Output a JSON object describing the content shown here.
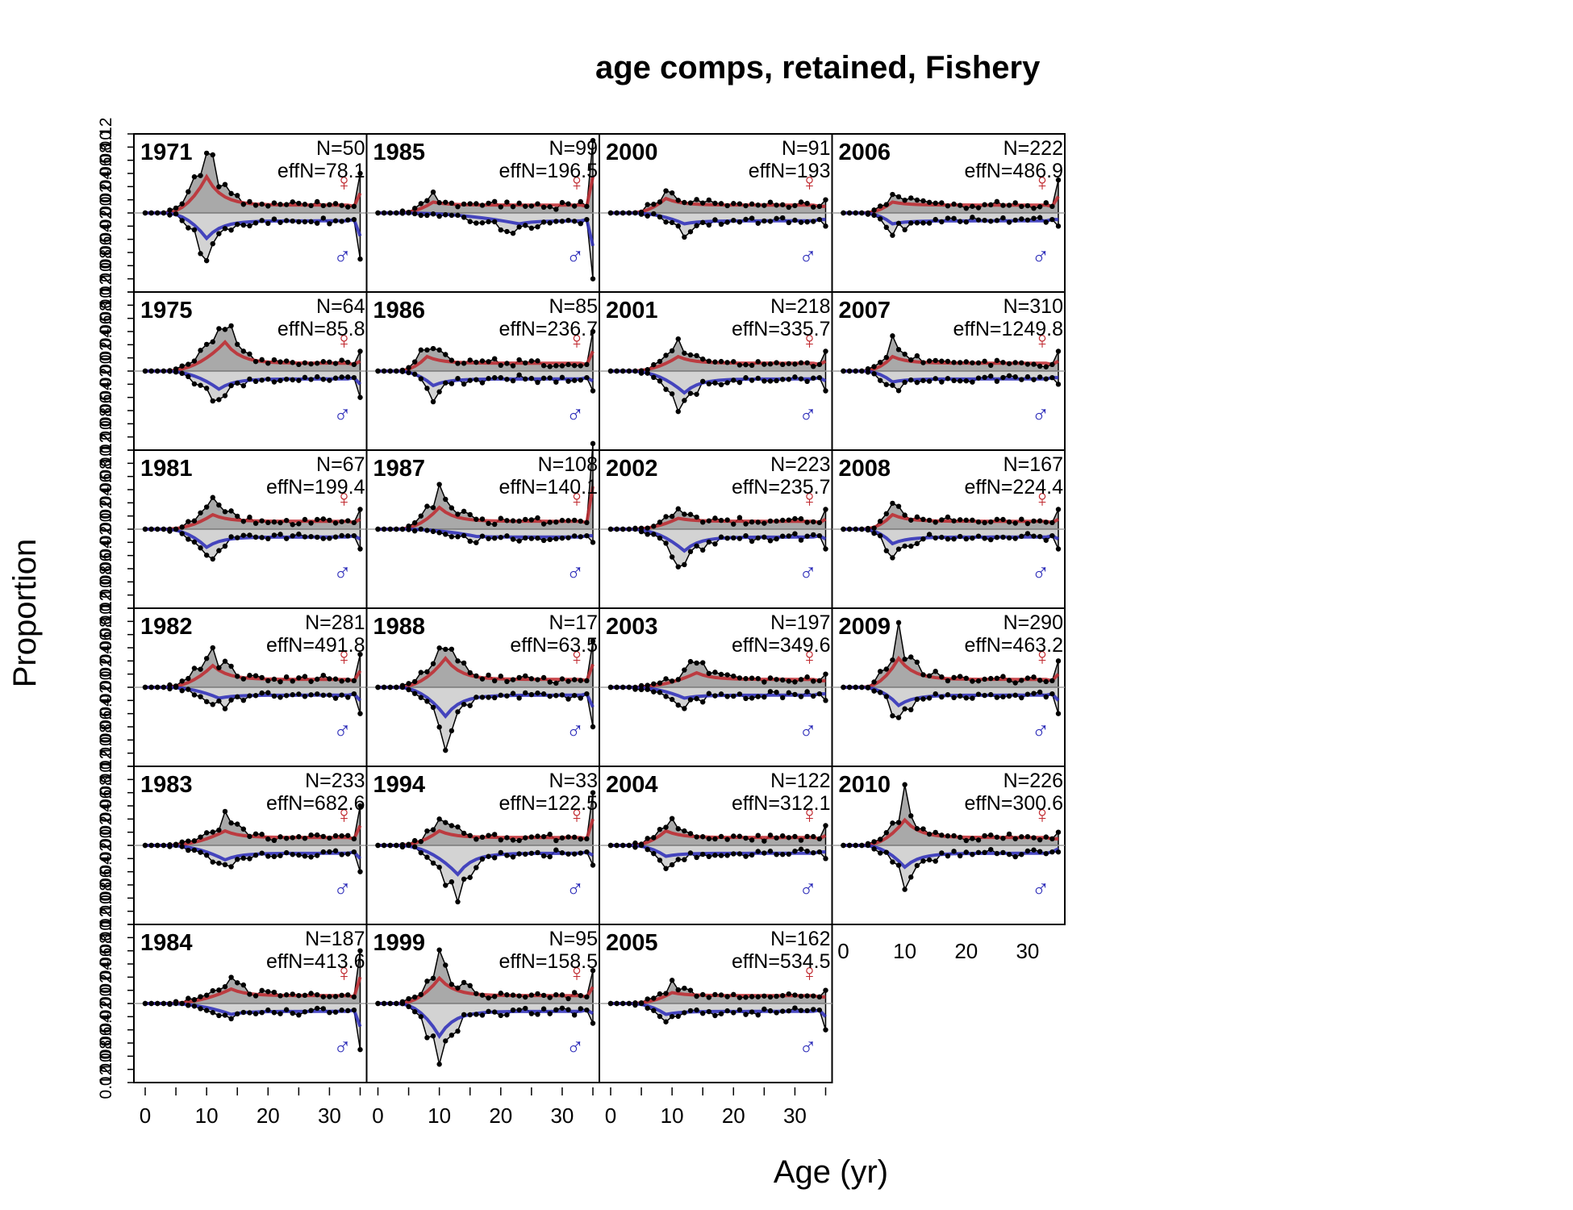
{
  "title": "age comps, retained, Fishery",
  "xlabel": "Age (yr)",
  "ylabel": "Proportion",
  "chart_data": {
    "type": "line",
    "title": "age comps, retained, Fishery",
    "xlabel": "Age (yr)",
    "ylabel": "Proportion",
    "xlim": [
      0,
      35
    ],
    "ylim": [
      -0.12,
      0.12
    ],
    "x_ticks": [
      0,
      10,
      20,
      30
    ],
    "y_ticks": [
      "0.12",
      "0.10",
      "0.08",
      "0.06",
      "0.04",
      "0.02",
      "0.00",
      "0.02",
      "0.04",
      "0.06",
      "0.08",
      "0.10",
      "0.12"
    ],
    "female_symbol": "♀",
    "male_symbol": "♂",
    "colors": {
      "female": "#c0282e",
      "male": "#2a2ab8",
      "observed_fill": "#a9a9a9",
      "observed": "#000000",
      "zero_line": "#a0a0a0"
    },
    "panels": [
      {
        "year": "1971",
        "N": "N=50",
        "effN": "effN=78.1",
        "fp": 10,
        "fpv": 0.1,
        "mp": 10,
        "mpv": 0.07,
        "fe": 0.06,
        "me": 0.07
      },
      {
        "year": "1975",
        "N": "N=64",
        "effN": "effN=85.8",
        "fp": 13,
        "fpv": 0.08,
        "mp": 12,
        "mpv": 0.05,
        "fe": 0.03,
        "me": 0.04
      },
      {
        "year": "1981",
        "N": "N=67",
        "effN": "effN=199.4",
        "fp": 11,
        "fpv": 0.04,
        "mp": 10,
        "mpv": 0.05,
        "fe": 0.03,
        "me": 0.03
      },
      {
        "year": "1982",
        "N": "N=281",
        "effN": "effN=491.8",
        "fp": 11,
        "fpv": 0.06,
        "mp": 12,
        "mpv": 0.03,
        "fe": 0.05,
        "me": 0.04
      },
      {
        "year": "1983",
        "N": "N=233",
        "effN": "effN=682.6",
        "fp": 13,
        "fpv": 0.04,
        "mp": 13,
        "mpv": 0.04,
        "fe": 0.06,
        "me": 0.04
      },
      {
        "year": "1984",
        "N": "N=187",
        "effN": "effN=413.6",
        "fp": 14,
        "fpv": 0.04,
        "mp": 14,
        "mpv": 0.03,
        "fe": 0.08,
        "me": 0.07
      },
      {
        "year": "1985",
        "N": "N=99",
        "effN": "effN=196.5",
        "fp": 9,
        "fpv": 0.03,
        "mp": 23,
        "mpv": 0.03,
        "fe": 0.11,
        "me": 0.1
      },
      {
        "year": "1986",
        "N": "N=85",
        "effN": "effN=236.7",
        "fp": 8,
        "fpv": 0.04,
        "mp": 9,
        "mpv": 0.04,
        "fe": 0.06,
        "me": 0.03
      },
      {
        "year": "1987",
        "N": "N=108",
        "effN": "effN=140.1",
        "fp": 10,
        "fpv": 0.06,
        "mp": 16,
        "mpv": 0.02,
        "fe": 0.13,
        "me": 0.02
      },
      {
        "year": "1988",
        "N": "N=17",
        "effN": "effN=63.5",
        "fp": 11,
        "fpv": 0.08,
        "mp": 11,
        "mpv": 0.08,
        "fe": 0.07,
        "me": 0.06
      },
      {
        "year": "1994",
        "N": "N=33",
        "effN": "effN=122.5",
        "fp": 10,
        "fpv": 0.04,
        "mp": 13,
        "mpv": 0.08,
        "fe": 0.08,
        "me": 0.03
      },
      {
        "year": "1999",
        "N": "N=95",
        "effN": "effN=158.5",
        "fp": 10,
        "fpv": 0.07,
        "mp": 10,
        "mpv": 0.09,
        "fe": 0.05,
        "me": 0.03
      },
      {
        "year": "2000",
        "N": "N=91",
        "effN": "effN=193",
        "fp": 9,
        "fpv": 0.04,
        "mp": 12,
        "mpv": 0.03,
        "fe": 0.02,
        "me": 0.02
      },
      {
        "year": "2001",
        "N": "N=218",
        "effN": "effN=335.7",
        "fp": 11,
        "fpv": 0.04,
        "mp": 12,
        "mpv": 0.06,
        "fe": 0.03,
        "me": 0.03
      },
      {
        "year": "2002",
        "N": "N=223",
        "effN": "effN=235.7",
        "fp": 11,
        "fpv": 0.03,
        "mp": 12,
        "mpv": 0.06,
        "fe": 0.03,
        "me": 0.03
      },
      {
        "year": "2003",
        "N": "N=197",
        "effN": "effN=349.6",
        "fp": 14,
        "fpv": 0.04,
        "mp": 12,
        "mpv": 0.03,
        "fe": 0.02,
        "me": 0.02
      },
      {
        "year": "2004",
        "N": "N=122",
        "effN": "effN=312.1",
        "fp": 9,
        "fpv": 0.04,
        "mp": 9,
        "mpv": 0.03,
        "fe": 0.03,
        "me": 0.02
      },
      {
        "year": "2005",
        "N": "N=162",
        "effN": "effN=534.5",
        "fp": 10,
        "fpv": 0.03,
        "mp": 9,
        "mpv": 0.03,
        "fe": 0.02,
        "me": 0.04
      },
      {
        "year": "2006",
        "N": "N=222",
        "effN": "effN=486.9",
        "fp": 8,
        "fpv": 0.03,
        "mp": 8,
        "mpv": 0.03,
        "fe": 0.05,
        "me": 0.02
      },
      {
        "year": "2007",
        "N": "N=310",
        "effN": "effN=1249.8",
        "fp": 8,
        "fpv": 0.04,
        "mp": 8,
        "mpv": 0.03,
        "fe": 0.03,
        "me": 0.02
      },
      {
        "year": "2008",
        "N": "N=167",
        "effN": "effN=224.4",
        "fp": 8,
        "fpv": 0.04,
        "mp": 8,
        "mpv": 0.04,
        "fe": 0.03,
        "me": 0.03
      },
      {
        "year": "2009",
        "N": "N=290",
        "effN": "effN=463.2",
        "fp": 9,
        "fpv": 0.08,
        "mp": 9,
        "mpv": 0.05,
        "fe": 0.04,
        "me": 0.04
      },
      {
        "year": "2010",
        "N": "N=226",
        "effN": "effN=300.6",
        "fp": 10,
        "fpv": 0.07,
        "mp": 10,
        "mpv": 0.06,
        "fe": 0.02,
        "me": 0.01
      }
    ]
  }
}
